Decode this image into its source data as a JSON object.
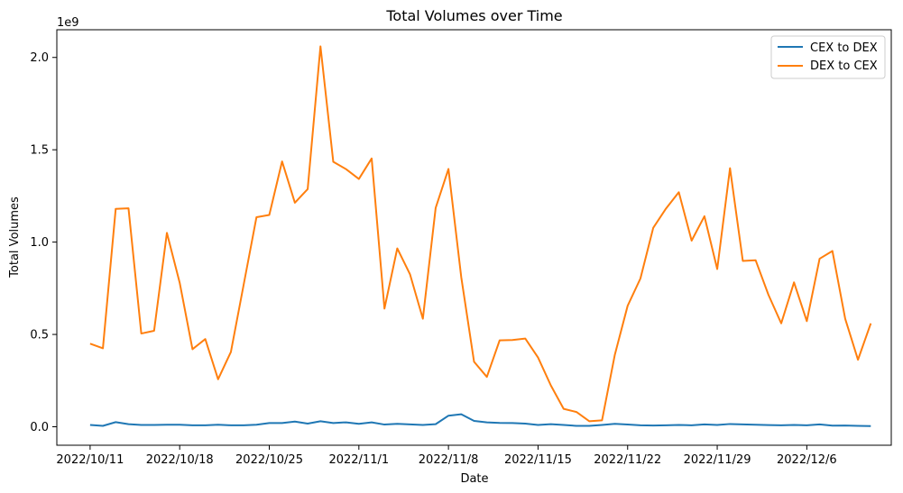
{
  "chart_data": {
    "type": "line",
    "title": "Total Volumes over Time",
    "xlabel": "Date",
    "ylabel": "Total Volumes",
    "y_offset_label": "1e9",
    "grid": false,
    "legend_position": "top-right",
    "xlim": [
      "2022/10/8",
      "2022/12/20"
    ],
    "ylim": [
      -0.1,
      2.15
    ],
    "x_ticks": [
      {
        "label": "2022/10/11",
        "day": 11
      },
      {
        "label": "2022/10/18",
        "day": 18
      },
      {
        "label": "2022/10/25",
        "day": 25
      },
      {
        "label": "2022/11/1",
        "day": 32
      },
      {
        "label": "2022/11/8",
        "day": 39
      },
      {
        "label": "2022/11/15",
        "day": 46
      },
      {
        "label": "2022/11/22",
        "day": 53
      },
      {
        "label": "2022/11/29",
        "day": 60
      },
      {
        "label": "2022/12/6",
        "day": 67
      }
    ],
    "y_ticks": [
      {
        "label": "0.0",
        "value": 0.0
      },
      {
        "label": "0.5",
        "value": 0.5
      },
      {
        "label": "1.0",
        "value": 1.0
      },
      {
        "label": "1.5",
        "value": 1.5
      },
      {
        "label": "2.0",
        "value": 2.0
      }
    ],
    "series": [
      {
        "name": "CEX to DEX",
        "color": "#1f77b4",
        "values": [
          0.01,
          0.005,
          0.025,
          0.014,
          0.01,
          0.01,
          0.011,
          0.011,
          0.008,
          0.008,
          0.011,
          0.008,
          0.008,
          0.011,
          0.02,
          0.02,
          0.028,
          0.017,
          0.03,
          0.02,
          0.024,
          0.016,
          0.024,
          0.012,
          0.016,
          0.013,
          0.01,
          0.014,
          0.06,
          0.068,
          0.032,
          0.024,
          0.021,
          0.02,
          0.017,
          0.01,
          0.014,
          0.01,
          0.005,
          0.005,
          0.01,
          0.016,
          0.012,
          0.008,
          0.007,
          0.008,
          0.01,
          0.008,
          0.013,
          0.01,
          0.015,
          0.013,
          0.011,
          0.009,
          0.008,
          0.01,
          0.008,
          0.013,
          0.006,
          0.007,
          0.005,
          0.004
        ]
      },
      {
        "name": "DEX to CEX",
        "color": "#ff7f0e",
        "values": [
          0.45,
          0.425,
          1.18,
          1.183,
          0.505,
          0.52,
          1.05,
          0.78,
          0.42,
          0.475,
          0.257,
          0.405,
          0.77,
          1.135,
          1.147,
          1.437,
          1.213,
          1.287,
          2.06,
          1.435,
          1.395,
          1.342,
          1.453,
          0.64,
          0.966,
          0.825,
          0.585,
          1.185,
          1.396,
          0.81,
          0.352,
          0.27,
          0.468,
          0.47,
          0.478,
          0.375,
          0.224,
          0.097,
          0.08,
          0.03,
          0.035,
          0.39,
          0.655,
          0.803,
          1.077,
          1.182,
          1.27,
          1.008,
          1.14,
          0.854,
          1.4,
          0.898,
          0.902,
          0.715,
          0.56,
          0.782,
          0.572,
          0.91,
          0.952,
          0.585,
          0.363,
          0.56
        ]
      }
    ]
  }
}
